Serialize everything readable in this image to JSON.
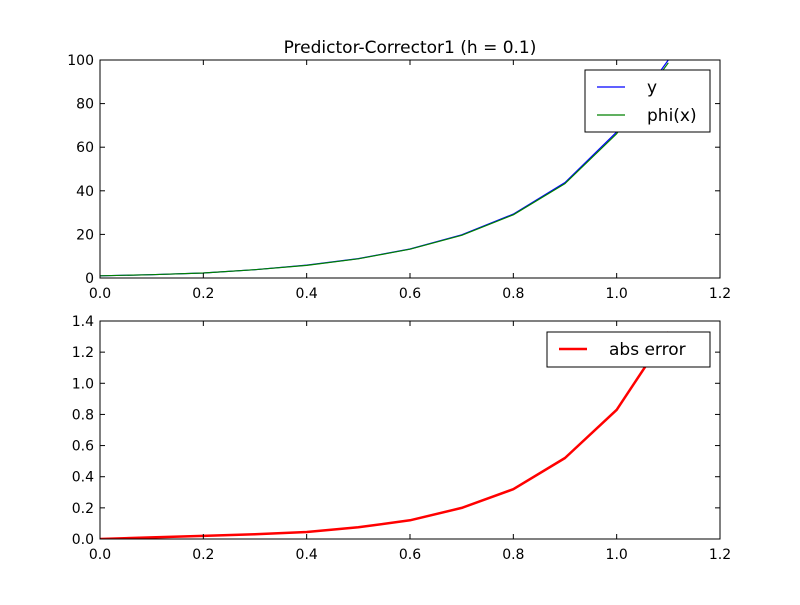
{
  "chart_data": [
    {
      "type": "line",
      "title": "Predictor-Corrector1 (h = 0.1)",
      "xlabel": "",
      "ylabel": "",
      "xlim": [
        0.0,
        1.2
      ],
      "ylim": [
        0,
        100
      ],
      "x_ticks": [
        "0.0",
        "0.2",
        "0.4",
        "0.6",
        "0.8",
        "1.0",
        "1.2"
      ],
      "y_ticks": [
        "0",
        "20",
        "40",
        "60",
        "80",
        "100"
      ],
      "x": [
        0.0,
        0.1,
        0.2,
        0.3,
        0.4,
        0.5,
        0.6,
        0.7,
        0.8,
        0.9,
        1.0,
        1.1
      ],
      "series": [
        {
          "name": "y",
          "color": "#0000ff",
          "values": [
            1.0,
            1.5,
            2.3,
            3.8,
            5.9,
            8.9,
            13.3,
            19.8,
            29.3,
            43.8,
            67.0,
            100.0
          ]
        },
        {
          "name": "phi(x)",
          "color": "#008000",
          "values": [
            1.0,
            1.5,
            2.3,
            3.8,
            5.8,
            8.8,
            13.2,
            19.6,
            29.0,
            43.3,
            66.2,
            98.7
          ]
        }
      ],
      "legend": "top-right",
      "grid": false
    },
    {
      "type": "line",
      "title": "",
      "xlabel": "",
      "ylabel": "",
      "xlim": [
        0.0,
        1.2
      ],
      "ylim": [
        0.0,
        1.4
      ],
      "x_ticks": [
        "0.0",
        "0.2",
        "0.4",
        "0.6",
        "0.8",
        "1.0",
        "1.2"
      ],
      "y_ticks": [
        "0.0",
        "0.2",
        "0.4",
        "0.6",
        "0.8",
        "1.0",
        "1.2",
        "1.4"
      ],
      "x": [
        0.0,
        0.1,
        0.2,
        0.3,
        0.4,
        0.5,
        0.6,
        0.7,
        0.8,
        0.9,
        1.0,
        1.1
      ],
      "series": [
        {
          "name": "abs error",
          "color": "#ff0000",
          "values": [
            0.0,
            0.01,
            0.02,
            0.03,
            0.045,
            0.075,
            0.12,
            0.2,
            0.32,
            0.52,
            0.83,
            1.33
          ]
        }
      ],
      "legend": "top-right",
      "grid": false
    }
  ]
}
